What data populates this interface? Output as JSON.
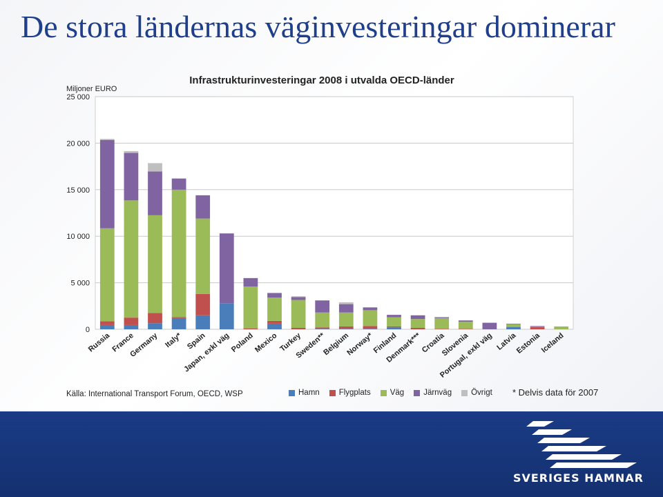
{
  "slide": {
    "title": "De stora ländernas väginvesteringar dominerar",
    "source": "Källa: International Transport Forum, OECD, WSP",
    "note": "* Delvis data för 2007",
    "logo_text": "SVERIGES HAMNAR"
  },
  "colors": {
    "Hamn": "#4a7ebb",
    "Flygplats": "#c0504d",
    "Väg": "#9bbb59",
    "Järnväg": "#8064a2",
    "Övrigt": "#bfbfbf"
  },
  "chart_data": {
    "type": "bar",
    "stacked": true,
    "title": "Infrastrukturinvesteringar 2008 i utvalda OECD-länder",
    "ylabel": "Miljoner EURO",
    "ylim": [
      0,
      25000
    ],
    "yticks": [
      0,
      5000,
      10000,
      15000,
      20000,
      25000
    ],
    "ytick_labels": [
      "0",
      "5 000",
      "10 000",
      "15 000",
      "20 000",
      "25 000"
    ],
    "grid": true,
    "legend": "bottom",
    "categories": [
      "Russia",
      "France",
      "Germany",
      "Italy*",
      "Spain",
      "Japan, exkl väg",
      "Poland",
      "Mexico",
      "Turkey",
      "Sweden**",
      "Belgium",
      "Norway*",
      "Finland",
      "Denmark***",
      "Croatia",
      "Slovenia",
      "Portugal, exkl väg",
      "Latvia",
      "Estonia",
      "Iceland"
    ],
    "series": [
      {
        "name": "Hamn",
        "values": [
          450,
          450,
          650,
          1200,
          1500,
          2800,
          0,
          600,
          0,
          50,
          50,
          50,
          200,
          0,
          0,
          0,
          0,
          250,
          0,
          0
        ]
      },
      {
        "name": "Flygplats",
        "values": [
          400,
          800,
          1100,
          100,
          2300,
          0,
          100,
          300,
          150,
          150,
          250,
          300,
          100,
          150,
          50,
          50,
          0,
          0,
          250,
          0
        ]
      },
      {
        "name": "Väg",
        "values": [
          10000,
          12600,
          10500,
          13700,
          8100,
          0,
          4500,
          2500,
          3000,
          1600,
          1500,
          1700,
          1000,
          950,
          1150,
          750,
          0,
          300,
          50,
          300
        ]
      },
      {
        "name": "Järnväg",
        "values": [
          9500,
          5100,
          4700,
          1200,
          2500,
          7500,
          900,
          500,
          300,
          1300,
          900,
          300,
          250,
          400,
          100,
          150,
          700,
          50,
          50,
          0
        ]
      },
      {
        "name": "Övrigt",
        "values": [
          100,
          200,
          900,
          0,
          0,
          0,
          0,
          0,
          100,
          0,
          200,
          0,
          0,
          0,
          0,
          0,
          0,
          0,
          0,
          0
        ]
      }
    ]
  }
}
